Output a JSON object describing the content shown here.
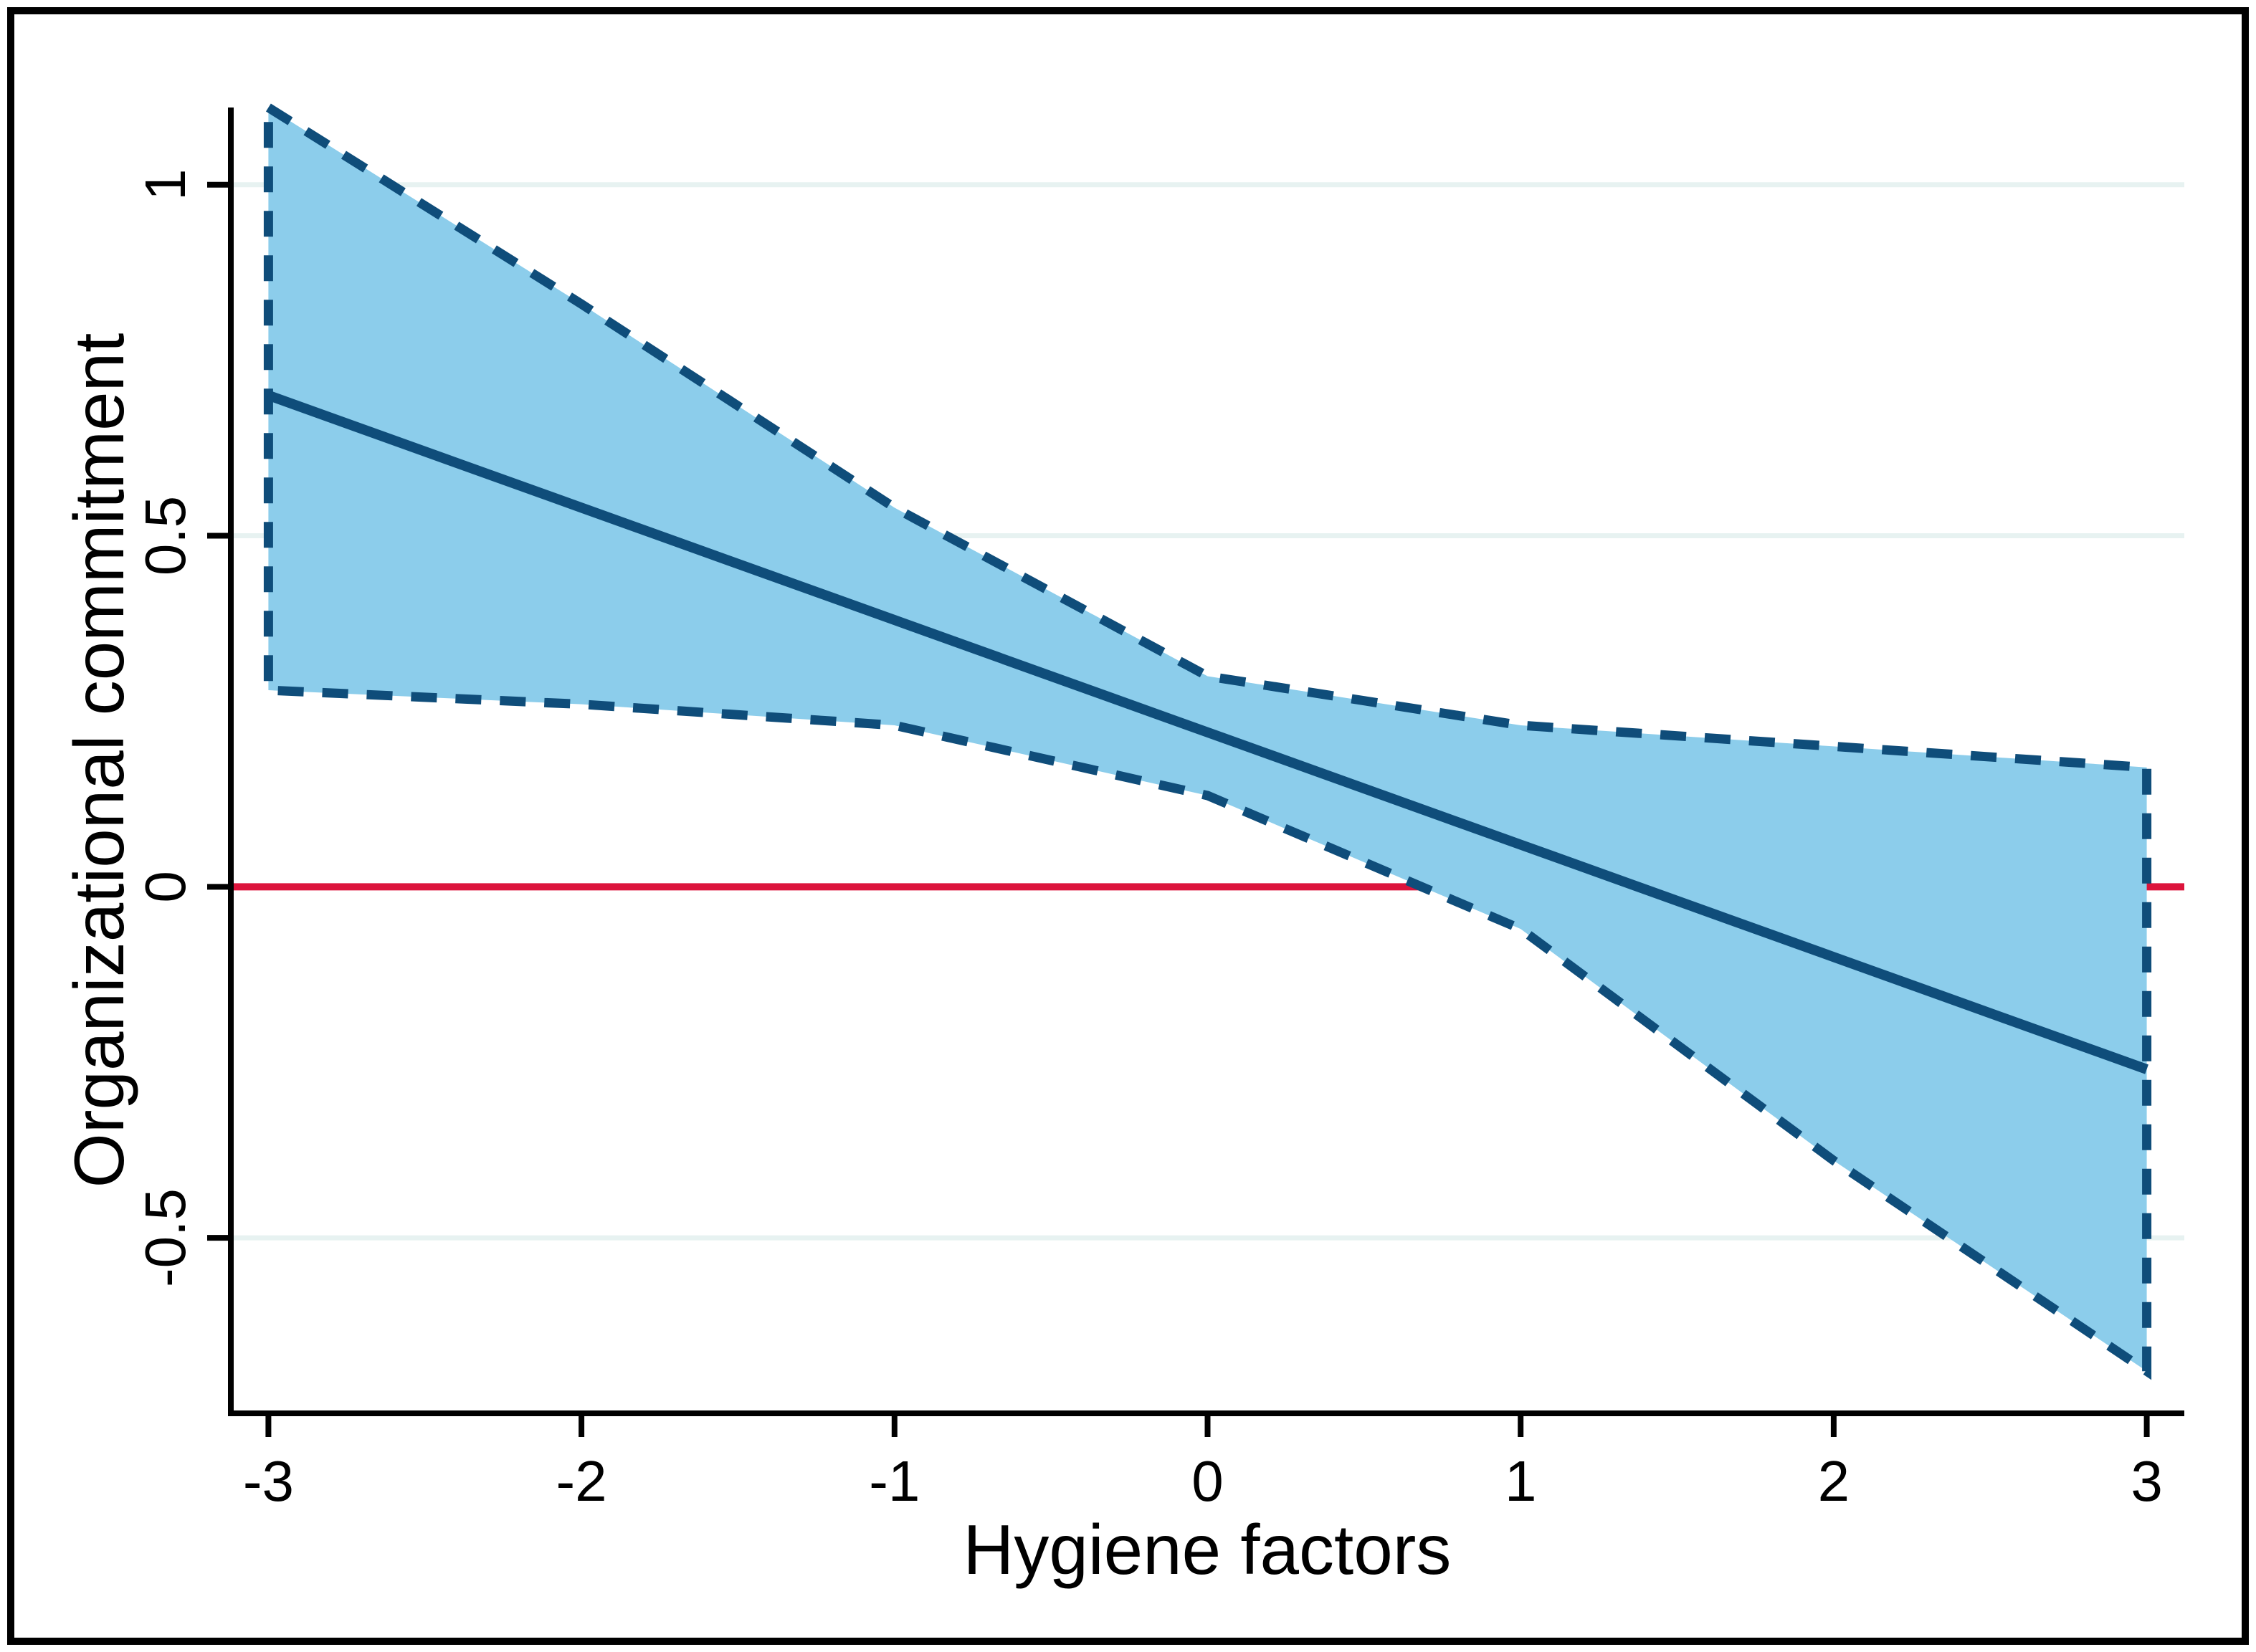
{
  "figure": {
    "background": "#ffffff",
    "frame_color": "#000000",
    "frame_stroke_width": 10
  },
  "chart_data": {
    "type": "area",
    "subtype": "regression-line-with-confidence-band",
    "title": "",
    "xlabel": "Hygiene factors",
    "ylabel": "Organizational commitment",
    "x": [
      -3,
      -2,
      -1,
      0,
      1,
      2,
      3
    ],
    "series": [
      {
        "name": "linear-prediction",
        "style": "solid",
        "values": [
          0.7,
          0.54,
          0.38,
          0.22,
          0.06,
          -0.1,
          -0.26
        ]
      },
      {
        "name": "ci-upper",
        "style": "dashed",
        "values": [
          1.11,
          0.83,
          0.54,
          0.3,
          0.23,
          0.2,
          0.17
        ]
      },
      {
        "name": "ci-lower",
        "style": "dashed",
        "values": [
          0.28,
          0.26,
          0.23,
          0.13,
          -0.06,
          -0.39,
          -0.69
        ]
      }
    ],
    "zero_line": {
      "y": 0,
      "color": "#dc143c"
    },
    "x_ticks": [
      -3,
      -2,
      -1,
      0,
      1,
      2,
      3
    ],
    "x_tick_labels": [
      "-3",
      "-2",
      "-1",
      "0",
      "1",
      "2",
      "3"
    ],
    "y_ticks": [
      -0.5,
      0,
      0.5,
      1
    ],
    "y_tick_labels": [
      "-0.5",
      "0",
      "0.5",
      "1"
    ],
    "gridlines_y": [
      1,
      0.5,
      -0.5
    ],
    "xlim": [
      -3.12,
      3.12
    ],
    "ylim": [
      -0.75,
      1.11
    ],
    "grid_on": true,
    "legend_position": "none",
    "colors": {
      "line": "#0f4d7a",
      "band_fill": "#8ccdeb",
      "band_edge": "#0f4d7a",
      "gridline": "#e7f2f1",
      "axis": "#000000",
      "tick_text": "#000000"
    }
  }
}
